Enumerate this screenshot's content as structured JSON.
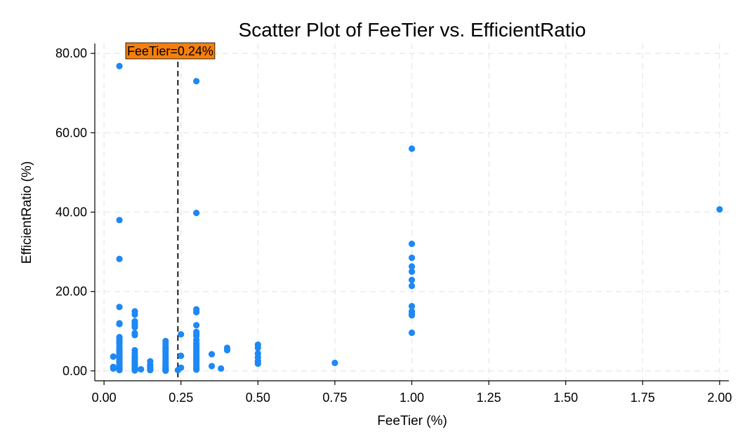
{
  "chart_data": {
    "type": "scatter",
    "title": "Scatter Plot of FeeTier vs. EfficientRatio",
    "xlabel": "FeeTier (%)",
    "ylabel": "EfficientRatio (%)",
    "xlim": [
      -0.03,
      2.03
    ],
    "ylim": [
      -2.5,
      82.5
    ],
    "xticks": [
      0.0,
      0.25,
      0.5,
      0.75,
      1.0,
      1.25,
      1.5,
      1.75,
      2.0
    ],
    "xtick_labels": [
      "0.00",
      "0.25",
      "0.50",
      "0.75",
      "1.00",
      "1.25",
      "1.50",
      "1.75",
      "2.00"
    ],
    "yticks": [
      0,
      20,
      40,
      60,
      80
    ],
    "ytick_labels": [
      "0.00",
      "20.00",
      "40.00",
      "60.00",
      "80.00"
    ],
    "grid": true,
    "colors": {
      "points": "#1E88F5",
      "annotation_box": "#F57F0E",
      "vline": "#000000",
      "grid": "#e6e6e6"
    },
    "annotation": {
      "x": 0.24,
      "text": "FeeTier=0.24%",
      "line_style": "dashed"
    },
    "series": [
      {
        "x": [
          0.03,
          0.03,
          0.03,
          0.05,
          0.05,
          0.05,
          0.05,
          0.05,
          0.05,
          0.05,
          0.05,
          0.05,
          0.05,
          0.05,
          0.05,
          0.05,
          0.05,
          0.05,
          0.05,
          0.05,
          0.05,
          0.05,
          0.05,
          0.05,
          0.05,
          0.05,
          0.05,
          0.05,
          0.05,
          0.1,
          0.1,
          0.1,
          0.1,
          0.1,
          0.1,
          0.1,
          0.1,
          0.1,
          0.1,
          0.1,
          0.1,
          0.1,
          0.1,
          0.1,
          0.1,
          0.1,
          0.1,
          0.1,
          0.1,
          0.1,
          0.12,
          0.15,
          0.15,
          0.15,
          0.15,
          0.15,
          0.2,
          0.2,
          0.2,
          0.2,
          0.2,
          0.2,
          0.2,
          0.2,
          0.2,
          0.2,
          0.2,
          0.2,
          0.2,
          0.2,
          0.2,
          0.2,
          0.2,
          0.24,
          0.25,
          0.25,
          0.25,
          0.3,
          0.3,
          0.3,
          0.3,
          0.3,
          0.3,
          0.3,
          0.3,
          0.3,
          0.3,
          0.3,
          0.3,
          0.3,
          0.3,
          0.3,
          0.3,
          0.3,
          0.3,
          0.3,
          0.3,
          0.3,
          0.3,
          0.3,
          0.3,
          0.3,
          0.35,
          0.35,
          0.38,
          0.4,
          0.4,
          0.5,
          0.5,
          0.5,
          0.5,
          0.5,
          0.5,
          0.75,
          1.0,
          1.0,
          1.0,
          1.0,
          1.0,
          1.0,
          1.0,
          1.0,
          1.0,
          1.0,
          1.0,
          1.0,
          2.0
        ],
        "y": [
          0.6,
          1.0,
          3.6,
          76.8,
          38.0,
          28.2,
          16.1,
          12.0,
          11.8,
          8.5,
          7.8,
          7.2,
          6.8,
          6.0,
          5.5,
          5.2,
          4.8,
          4.3,
          3.9,
          3.5,
          3.0,
          2.5,
          2.0,
          1.5,
          1.1,
          0.8,
          0.6,
          0.4,
          0.2,
          15.0,
          14.2,
          12.5,
          12.0,
          11.5,
          11.0,
          9.5,
          9.0,
          5.2,
          4.5,
          3.8,
          3.2,
          2.8,
          2.3,
          1.9,
          1.5,
          1.2,
          0.9,
          0.6,
          0.3,
          0.1,
          0.4,
          2.4,
          1.5,
          1.0,
          0.5,
          0.2,
          7.5,
          6.8,
          6.0,
          5.5,
          5.0,
          4.3,
          3.6,
          3.0,
          2.4,
          1.8,
          1.3,
          0.9,
          0.7,
          0.5,
          0.3,
          0.15,
          0.05,
          0.2,
          9.2,
          3.8,
          0.8,
          73.0,
          39.8,
          15.5,
          14.8,
          11.5,
          9.8,
          9.2,
          8.8,
          7.8,
          7.0,
          6.5,
          6.0,
          5.5,
          5.0,
          4.5,
          4.0,
          3.6,
          3.2,
          2.8,
          2.5,
          2.0,
          1.5,
          1.0,
          0.6,
          0.3,
          4.2,
          1.2,
          0.6,
          5.8,
          5.2,
          6.6,
          5.8,
          4.4,
          3.4,
          2.5,
          1.8,
          2.0,
          56.0,
          32.0,
          28.5,
          26.3,
          25.0,
          22.9,
          21.4,
          16.3,
          15.0,
          14.3,
          14.0,
          9.6,
          40.7
        ]
      }
    ]
  }
}
